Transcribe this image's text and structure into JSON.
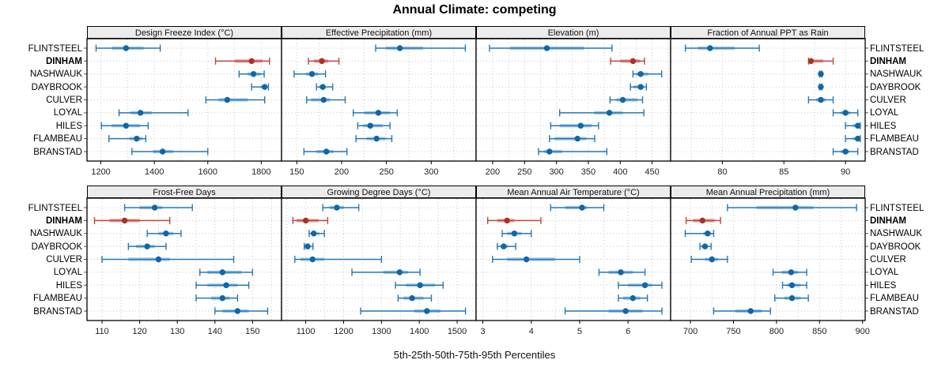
{
  "title": "Annual Climate: competing",
  "footer": "5th-25th-50th-75th-95th Percentiles",
  "chart_data": {
    "type": "trellis-dotplot",
    "title": "Annual Climate: competing",
    "footer_label": "5th-25th-50th-75th-95th Percentiles",
    "percentiles": [
      5,
      25,
      50,
      75,
      95
    ],
    "stations": [
      "FLINTSTEEL",
      "DINHAM",
      "NASHWAUK",
      "DAYBROOK",
      "CULVER",
      "LOYAL",
      "HILES",
      "FLAMBEAU",
      "BRANSTAD"
    ],
    "highlight_station": "DINHAM",
    "legend_position": "none",
    "grid": "dotted",
    "colors": {
      "blue_dot": "#1166a5",
      "blue_line": "#2477b3",
      "blue_band": "#a5c8e4",
      "red_dot": "#a93226",
      "red_line": "#c0453a",
      "red_band": "#e3a49c",
      "strip_bg": "#ececec",
      "gridline": "#c6c6c6",
      "border": "#000000"
    },
    "panels": [
      {
        "title": "Design Freeze Index (°C)",
        "xlim": [
          1148,
          1876
        ],
        "ticks": [
          1200,
          1400,
          1600,
          1800
        ],
        "tick_labels": [
          "1200",
          "1400",
          "1600",
          "1800"
        ],
        "series": [
          [
            1182,
            1242,
            1294,
            1360,
            1422
          ],
          [
            1629,
            1700,
            1764,
            1805,
            1831
          ],
          [
            1717,
            1749,
            1771,
            1798,
            1811
          ],
          [
            1764,
            1798,
            1813,
            1822,
            1827
          ],
          [
            1593,
            1640,
            1673,
            1750,
            1813
          ],
          [
            1268,
            1310,
            1348,
            1390,
            1526
          ],
          [
            1202,
            1240,
            1294,
            1346,
            1377
          ],
          [
            1230,
            1306,
            1334,
            1356,
            1368
          ],
          [
            1316,
            1395,
            1431,
            1470,
            1600
          ]
        ]
      },
      {
        "title": "Effective Precipitation (mm)",
        "xlim": [
          133,
          350
        ],
        "ticks": [
          150,
          200,
          250,
          300
        ],
        "tick_labels": [
          "150",
          "200",
          "250",
          "300"
        ],
        "series": [
          [
            238,
            249,
            265,
            291,
            338
          ],
          [
            163,
            169,
            178,
            185,
            197
          ],
          [
            147,
            160,
            167,
            174,
            182
          ],
          [
            172,
            175,
            179,
            182,
            190
          ],
          [
            161,
            166,
            180,
            187,
            204
          ],
          [
            213,
            225,
            241,
            254,
            262
          ],
          [
            218,
            224,
            232,
            246,
            254
          ],
          [
            216,
            228,
            239,
            249,
            256
          ],
          [
            158,
            172,
            183,
            191,
            206
          ]
        ]
      },
      {
        "title": "Elevation (m)",
        "xlim": [
          174,
          479
        ],
        "ticks": [
          200,
          250,
          300,
          350,
          400,
          450
        ],
        "tick_labels": [
          "200",
          "250",
          "300",
          "350",
          "400",
          "450"
        ],
        "series": [
          [
            195,
            227,
            285,
            343,
            387
          ],
          [
            385,
            400,
            420,
            431,
            438
          ],
          [
            420,
            425,
            432,
            444,
            465
          ],
          [
            416,
            421,
            432,
            437,
            441
          ],
          [
            384,
            394,
            404,
            427,
            435
          ],
          [
            305,
            359,
            383,
            404,
            437
          ],
          [
            291,
            305,
            338,
            355,
            366
          ],
          [
            289,
            297,
            333,
            347,
            360
          ],
          [
            272,
            280,
            289,
            309,
            379
          ]
        ]
      },
      {
        "title": "Fraction of Annual PPT as Rain",
        "xlim": [
          75.8,
          91.6
        ],
        "ticks": [
          80,
          85,
          90
        ],
        "tick_labels": [
          "80",
          "85",
          "90"
        ],
        "series": [
          [
            77.0,
            78.0,
            79.0,
            81.0,
            83.0
          ],
          [
            87.0,
            87.1,
            87.2,
            88.2,
            89.0
          ],
          [
            87.9,
            88.0,
            88.0,
            88.0,
            88.1
          ],
          [
            87.9,
            88.0,
            88.0,
            88.0,
            88.1
          ],
          [
            87.0,
            87.6,
            88.0,
            88.4,
            89.0
          ],
          [
            89.0,
            89.6,
            90.0,
            90.4,
            91.0
          ],
          [
            90.0,
            90.6,
            91.0,
            91.1,
            91.2
          ],
          [
            90.0,
            90.6,
            91.0,
            91.1,
            91.2
          ],
          [
            89.0,
            89.6,
            90.0,
            90.3,
            91.0
          ]
        ]
      },
      {
        "title": "Frost-Free Days",
        "xlim": [
          106,
          157.7
        ],
        "ticks": [
          110,
          120,
          130,
          140,
          150
        ],
        "tick_labels": [
          "110",
          "120",
          "130",
          "140",
          "150"
        ],
        "series": [
          [
            116,
            120,
            124,
            126,
            134
          ],
          [
            108,
            112,
            116,
            120,
            128
          ],
          [
            122,
            125,
            127,
            129,
            131
          ],
          [
            117,
            119,
            122,
            124,
            127
          ],
          [
            110,
            117,
            125,
            128,
            145
          ],
          [
            136,
            138,
            142,
            147,
            150
          ],
          [
            135,
            138,
            143,
            146,
            149
          ],
          [
            135,
            139,
            142,
            144,
            146
          ],
          [
            140,
            142,
            146,
            149,
            154
          ]
        ]
      },
      {
        "title": "Growing Degree Days (°C)",
        "xlim": [
          1036,
          1550
        ],
        "ticks": [
          1100,
          1200,
          1300,
          1400,
          1500
        ],
        "tick_labels": [
          "1100",
          "1200",
          "1300",
          "1400",
          "1500"
        ],
        "series": [
          [
            1145,
            1163,
            1182,
            1201,
            1240
          ],
          [
            1066,
            1076,
            1100,
            1134,
            1158
          ],
          [
            1109,
            1116,
            1121,
            1136,
            1149
          ],
          [
            1096,
            1101,
            1105,
            1112,
            1119
          ],
          [
            1071,
            1086,
            1118,
            1149,
            1300
          ],
          [
            1222,
            1305,
            1348,
            1370,
            1402
          ],
          [
            1337,
            1365,
            1402,
            1442,
            1463
          ],
          [
            1344,
            1358,
            1381,
            1411,
            1432
          ],
          [
            1245,
            1386,
            1420,
            1456,
            1522
          ]
        ]
      },
      {
        "title": "Mean Annual Air Temperature (°C)",
        "xlim": [
          2.86,
          6.88
        ],
        "ticks": [
          3,
          4,
          5,
          6
        ],
        "tick_labels": [
          "3",
          "4",
          "5",
          "6"
        ],
        "series": [
          [
            4.4,
            4.7,
            5.05,
            5.15,
            5.5
          ],
          [
            3.1,
            3.3,
            3.5,
            3.65,
            4.2
          ],
          [
            3.4,
            3.5,
            3.65,
            3.8,
            4.0
          ],
          [
            3.3,
            3.37,
            3.43,
            3.52,
            3.68
          ],
          [
            3.2,
            3.5,
            3.9,
            4.5,
            5.0
          ],
          [
            5.4,
            5.6,
            5.85,
            6.1,
            6.35
          ],
          [
            5.8,
            6.0,
            6.35,
            6.5,
            6.7
          ],
          [
            5.8,
            5.9,
            6.1,
            6.25,
            6.4
          ],
          [
            4.7,
            5.6,
            5.95,
            6.3,
            6.7
          ]
        ]
      },
      {
        "title": "Mean Annual Precipitation (mm)",
        "xlim": [
          677,
          903
        ],
        "ticks": [
          700,
          750,
          800,
          850,
          900
        ],
        "tick_labels": [
          "700",
          "750",
          "800",
          "850",
          "900"
        ],
        "series": [
          [
            743,
            777,
            822,
            843,
            893
          ],
          [
            695,
            703,
            714,
            728,
            735
          ],
          [
            694,
            715,
            720,
            724,
            727
          ],
          [
            711,
            713,
            717,
            720,
            724
          ],
          [
            701,
            717,
            725,
            732,
            743
          ],
          [
            796,
            806,
            817,
            825,
            835
          ],
          [
            807,
            812,
            818,
            828,
            835
          ],
          [
            798,
            809,
            818,
            828,
            837
          ],
          [
            727,
            752,
            770,
            783,
            793
          ]
        ]
      }
    ]
  }
}
